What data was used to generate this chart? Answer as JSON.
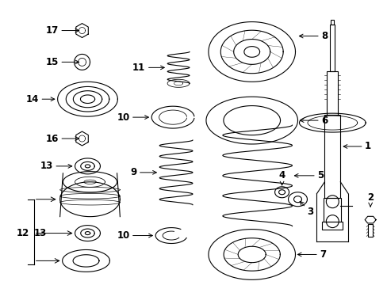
{
  "background_color": "#ffffff",
  "line_color": "#000000",
  "line_width": 0.8,
  "figsize": [
    4.89,
    3.6
  ],
  "dpi": 100
}
